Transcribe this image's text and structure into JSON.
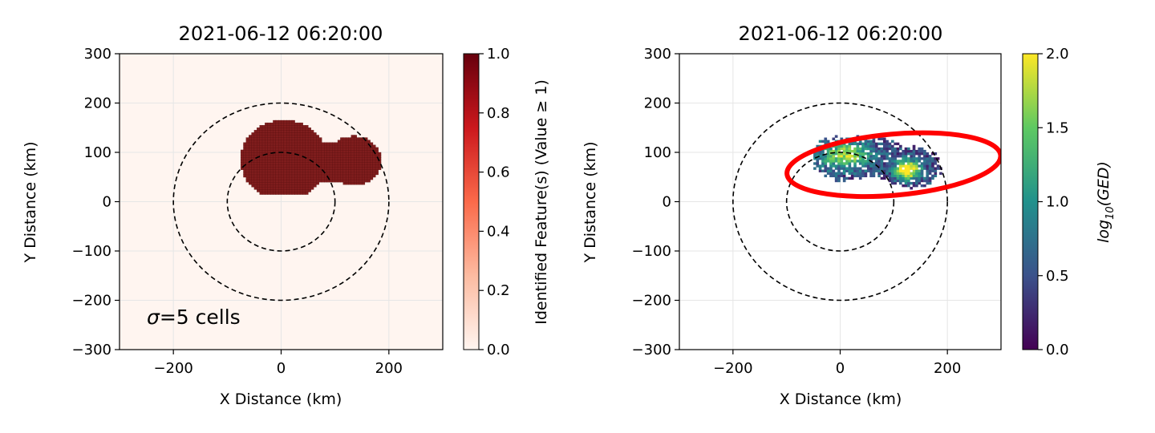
{
  "chart_data": [
    {
      "type": "heatmap",
      "title": "2021-06-12 06:20:00",
      "xlabel": "X Distance (km)",
      "ylabel": "Y Distance (km)",
      "xlim": [
        -300,
        300
      ],
      "ylim": [
        -300,
        300
      ],
      "xticks": [
        -200,
        0,
        200
      ],
      "yticks": [
        -300,
        -200,
        -100,
        0,
        100,
        200,
        300
      ],
      "xtick_labels": [
        "−200",
        "0",
        "200"
      ],
      "ytick_labels": [
        "−300",
        "−200",
        "−100",
        "0",
        "100",
        "200",
        "300"
      ],
      "grid": true,
      "annotation": {
        "text": "σ=5 cells",
        "x": -245,
        "y": -235
      },
      "circles": [
        {
          "center": [
            0,
            0
          ],
          "radius": 100,
          "style": "dashed",
          "color": "#000000"
        },
        {
          "center": [
            0,
            0
          ],
          "radius": 200,
          "style": "dashed",
          "color": "#000000"
        }
      ],
      "feature_mask": {
        "value": 1.0,
        "lobes": [
          {
            "center": [
              5,
              85
            ],
            "radius": 80
          },
          {
            "center": [
              135,
              83
            ],
            "radius": 50
          },
          {
            "center": [
              95,
              80
            ],
            "radius": 42
          }
        ],
        "ymin": 15
      },
      "colorbar": {
        "label": "Identified Feature(s) (Value ≥ 1)",
        "colormap": "Reds",
        "range": [
          0.0,
          1.0
        ],
        "ticks": [
          "0.0",
          "0.2",
          "0.4",
          "0.6",
          "0.8",
          "1.0"
        ],
        "stops": [
          "#fff5f0",
          "#fcbba1",
          "#fb6a4a",
          "#cb181d",
          "#67000d"
        ]
      },
      "background_color": "#fff5f0",
      "feature_color": "#7f1d1d"
    },
    {
      "type": "heatmap",
      "title": "2021-06-12 06:20:00",
      "xlabel": "X Distance (km)",
      "ylabel": "Y Distance (km)",
      "xlim": [
        -300,
        300
      ],
      "ylim": [
        -300,
        300
      ],
      "xticks": [
        -200,
        0,
        200
      ],
      "yticks": [
        -300,
        -200,
        -100,
        0,
        100,
        200,
        300
      ],
      "xtick_labels": [
        "−200",
        "0",
        "200"
      ],
      "ytick_labels": [
        "−300",
        "−200",
        "−100",
        "0",
        "100",
        "200",
        "300"
      ],
      "grid": true,
      "circles": [
        {
          "center": [
            0,
            0
          ],
          "radius": 100,
          "style": "dashed",
          "color": "#000000"
        },
        {
          "center": [
            0,
            0
          ],
          "radius": 200,
          "style": "dashed",
          "color": "#000000"
        }
      ],
      "ellipse": {
        "center": [
          100,
          75
        ],
        "rx": 200,
        "ry": 62,
        "rotation_deg": -5,
        "color": "#ff0000"
      },
      "field": {
        "x_range": [
          -50,
          200
        ],
        "y_range": [
          15,
          145
        ],
        "peak": {
          "x": 125,
          "y": 65,
          "log10_ged": 2.0
        },
        "secondary_peak": {
          "x": 10,
          "y": 95,
          "log10_ged": 1.3
        }
      },
      "colorbar": {
        "label": "log10(GED)",
        "label_main": "log",
        "label_sub": "10",
        "label_rest": "(GED)",
        "colormap": "viridis",
        "range": [
          0.0,
          2.0
        ],
        "ticks": [
          "0.0",
          "0.5",
          "1.0",
          "1.5",
          "2.0"
        ],
        "stops": [
          "#440154",
          "#3b528b",
          "#21918c",
          "#5ec962",
          "#fde725"
        ]
      }
    }
  ]
}
